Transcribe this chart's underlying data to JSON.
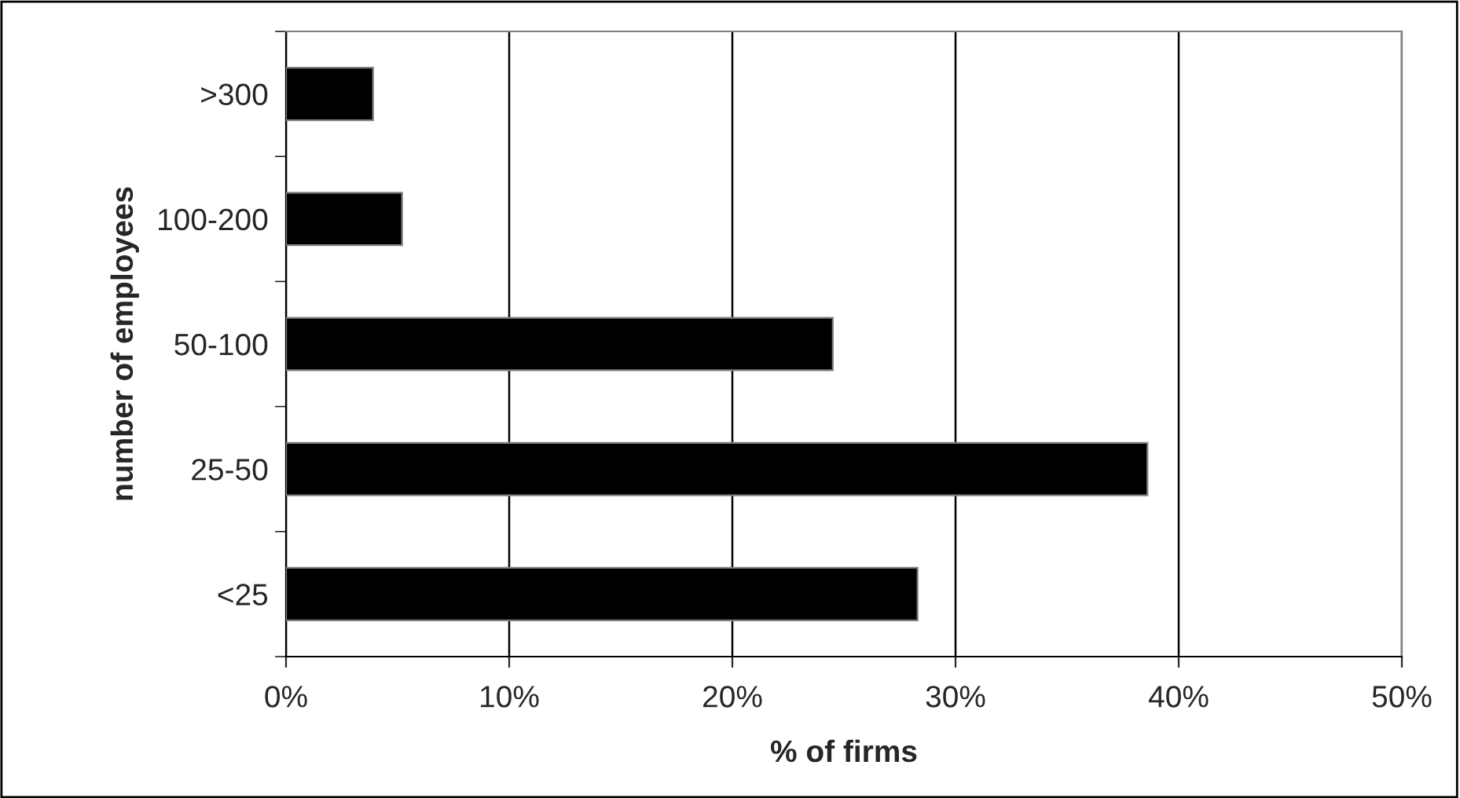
{
  "chart_data": {
    "type": "bar",
    "orientation": "horizontal",
    "xlabel": "% of firms",
    "ylabel": "number of employees",
    "categories": [
      ">300",
      "100-200",
      "50-100",
      "25-50",
      "<25"
    ],
    "values": [
      3.9,
      5.2,
      24.5,
      38.6,
      28.3
    ],
    "color": "#000000",
    "xlim": [
      0,
      50
    ],
    "xticks": [
      {
        "value": 0,
        "label": "0%"
      },
      {
        "value": 10,
        "label": "10%"
      },
      {
        "value": 20,
        "label": "20%"
      },
      {
        "value": 30,
        "label": "30%"
      },
      {
        "value": 40,
        "label": "40%"
      },
      {
        "value": 50,
        "label": "50%"
      }
    ],
    "grid": "x",
    "legend": false
  }
}
